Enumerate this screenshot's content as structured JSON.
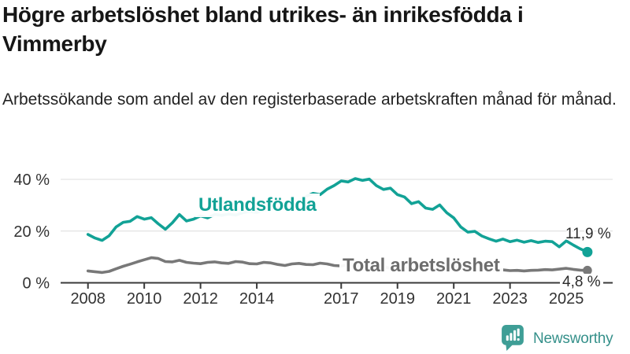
{
  "colors": {
    "teal": "#12a296",
    "gray": "#787878",
    "axis": "#3a3a3a",
    "grid": "#dcdcdc",
    "tick_text": "#333333",
    "brand": "#35908a"
  },
  "footer": {
    "brand": "Newsworthy"
  },
  "chart_data": {
    "type": "line",
    "title": "Högre arbetslöshet bland utrikes- än inrikesfödda i Vimmerby",
    "subtitle": "Arbetssökande som andel av den registerbaserade arbetskraften månad för månad.",
    "xlabel": "",
    "ylabel": "",
    "grid": "horizontal only",
    "legend_position": "inline labels on lines",
    "xlim": [
      2007,
      2026.6
    ],
    "ylim": [
      0,
      44
    ],
    "y_ticks": [
      {
        "value": 0,
        "label": "0 %"
      },
      {
        "value": 20,
        "label": "20 %"
      },
      {
        "value": 40,
        "label": "40 %"
      }
    ],
    "x_ticks": [
      {
        "value": 2008,
        "label": "2008"
      },
      {
        "value": 2010,
        "label": "2010"
      },
      {
        "value": 2012,
        "label": "2012"
      },
      {
        "value": 2014,
        "label": "2014"
      },
      {
        "value": 2017,
        "label": "2017"
      },
      {
        "value": 2019,
        "label": "2019"
      },
      {
        "value": 2021,
        "label": "2021"
      },
      {
        "value": 2023,
        "label": "2023"
      },
      {
        "value": 2025,
        "label": "2025"
      }
    ],
    "series": [
      {
        "name": "Utlandsfödda",
        "color": "#12a296",
        "end_label": "11,9 %",
        "end_value": 11.9,
        "points": [
          [
            2008.0,
            18.7
          ],
          [
            2008.25,
            17.3
          ],
          [
            2008.5,
            16.4
          ],
          [
            2008.75,
            18.2
          ],
          [
            2009.0,
            21.6
          ],
          [
            2009.25,
            23.4
          ],
          [
            2009.5,
            23.8
          ],
          [
            2009.75,
            25.6
          ],
          [
            2010.0,
            24.6
          ],
          [
            2010.25,
            25.2
          ],
          [
            2010.5,
            22.8
          ],
          [
            2010.75,
            20.7
          ],
          [
            2011.0,
            23.2
          ],
          [
            2011.25,
            26.4
          ],
          [
            2011.5,
            23.9
          ],
          [
            2011.75,
            24.6
          ],
          [
            2012.0,
            25.9
          ],
          [
            2012.25,
            25.1
          ],
          [
            2012.5,
            26.4
          ],
          [
            2012.75,
            26.1
          ],
          [
            2013.0,
            26.6
          ],
          [
            2013.25,
            26.2
          ],
          [
            2013.5,
            27.1
          ],
          [
            2013.75,
            27.6
          ],
          [
            2014.0,
            27.2
          ],
          [
            2014.25,
            28.1
          ],
          [
            2014.5,
            28.6
          ],
          [
            2014.75,
            29.2
          ],
          [
            2015.0,
            30.1
          ],
          [
            2015.25,
            31.0
          ],
          [
            2015.5,
            31.6
          ],
          [
            2015.75,
            33.4
          ],
          [
            2016.0,
            34.6
          ],
          [
            2016.25,
            34.1
          ],
          [
            2016.5,
            36.2
          ],
          [
            2016.75,
            37.6
          ],
          [
            2017.0,
            39.4
          ],
          [
            2017.25,
            39.0
          ],
          [
            2017.5,
            40.3
          ],
          [
            2017.75,
            39.6
          ],
          [
            2018.0,
            40.1
          ],
          [
            2018.25,
            37.6
          ],
          [
            2018.5,
            36.1
          ],
          [
            2018.75,
            36.6
          ],
          [
            2019.0,
            34.1
          ],
          [
            2019.25,
            33.2
          ],
          [
            2019.5,
            30.6
          ],
          [
            2019.75,
            31.4
          ],
          [
            2020.0,
            28.9
          ],
          [
            2020.25,
            28.4
          ],
          [
            2020.5,
            30.1
          ],
          [
            2020.75,
            27.1
          ],
          [
            2021.0,
            25.1
          ],
          [
            2021.25,
            21.6
          ],
          [
            2021.5,
            19.6
          ],
          [
            2021.75,
            19.9
          ],
          [
            2022.0,
            18.1
          ],
          [
            2022.25,
            17.0
          ],
          [
            2022.5,
            16.1
          ],
          [
            2022.75,
            16.9
          ],
          [
            2023.0,
            15.9
          ],
          [
            2023.25,
            16.5
          ],
          [
            2023.5,
            15.7
          ],
          [
            2023.75,
            16.3
          ],
          [
            2024.0,
            15.6
          ],
          [
            2024.25,
            16.1
          ],
          [
            2024.5,
            15.9
          ],
          [
            2024.75,
            13.9
          ],
          [
            2025.0,
            16.2
          ],
          [
            2025.25,
            14.6
          ],
          [
            2025.5,
            13.1
          ],
          [
            2025.75,
            11.9
          ]
        ]
      },
      {
        "name": "Total arbetslöshet",
        "color": "#787878",
        "end_label": "4,8 %",
        "end_value": 4.8,
        "points": [
          [
            2008.0,
            4.6
          ],
          [
            2008.25,
            4.3
          ],
          [
            2008.5,
            4.0
          ],
          [
            2008.75,
            4.4
          ],
          [
            2009.0,
            5.4
          ],
          [
            2009.25,
            6.4
          ],
          [
            2009.5,
            7.2
          ],
          [
            2009.75,
            8.1
          ],
          [
            2010.0,
            8.9
          ],
          [
            2010.25,
            9.7
          ],
          [
            2010.5,
            9.4
          ],
          [
            2010.75,
            8.2
          ],
          [
            2011.0,
            8.1
          ],
          [
            2011.25,
            8.7
          ],
          [
            2011.5,
            7.9
          ],
          [
            2011.75,
            7.6
          ],
          [
            2012.0,
            7.4
          ],
          [
            2012.25,
            7.9
          ],
          [
            2012.5,
            8.1
          ],
          [
            2012.75,
            7.7
          ],
          [
            2013.0,
            7.5
          ],
          [
            2013.25,
            8.2
          ],
          [
            2013.5,
            8.0
          ],
          [
            2013.75,
            7.4
          ],
          [
            2014.0,
            7.3
          ],
          [
            2014.25,
            7.9
          ],
          [
            2014.5,
            7.7
          ],
          [
            2014.75,
            7.1
          ],
          [
            2015.0,
            6.7
          ],
          [
            2015.25,
            7.3
          ],
          [
            2015.5,
            7.5
          ],
          [
            2015.75,
            7.1
          ],
          [
            2016.0,
            7.0
          ],
          [
            2016.25,
            7.6
          ],
          [
            2016.5,
            7.3
          ],
          [
            2016.75,
            6.7
          ],
          [
            2017.0,
            6.5
          ],
          [
            2017.25,
            7.0
          ],
          [
            2017.5,
            6.8
          ],
          [
            2017.75,
            6.4
          ],
          [
            2018.0,
            6.1
          ],
          [
            2018.25,
            6.3
          ],
          [
            2018.5,
            6.1
          ],
          [
            2018.75,
            5.7
          ],
          [
            2019.0,
            5.6
          ],
          [
            2019.25,
            5.9
          ],
          [
            2019.5,
            5.7
          ],
          [
            2019.75,
            5.4
          ],
          [
            2020.0,
            5.9
          ],
          [
            2020.25,
            6.9
          ],
          [
            2020.5,
            6.7
          ],
          [
            2020.75,
            6.3
          ],
          [
            2021.0,
            6.1
          ],
          [
            2021.25,
            5.9
          ],
          [
            2021.5,
            5.5
          ],
          [
            2021.75,
            5.3
          ],
          [
            2022.0,
            5.1
          ],
          [
            2022.25,
            5.1
          ],
          [
            2022.5,
            4.9
          ],
          [
            2022.75,
            5.0
          ],
          [
            2023.0,
            4.7
          ],
          [
            2023.25,
            4.8
          ],
          [
            2023.5,
            4.6
          ],
          [
            2023.75,
            4.8
          ],
          [
            2024.0,
            4.9
          ],
          [
            2024.25,
            5.1
          ],
          [
            2024.5,
            5.0
          ],
          [
            2024.75,
            5.3
          ],
          [
            2025.0,
            5.6
          ],
          [
            2025.25,
            5.2
          ],
          [
            2025.5,
            4.9
          ],
          [
            2025.75,
            4.8
          ]
        ]
      }
    ]
  }
}
